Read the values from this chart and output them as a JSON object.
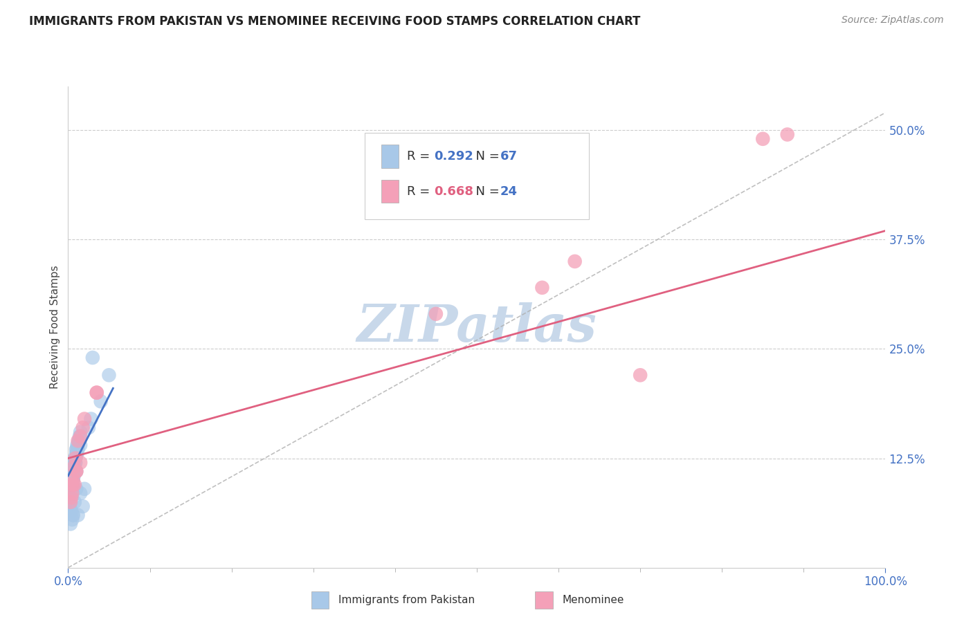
{
  "title": "IMMIGRANTS FROM PAKISTAN VS MENOMINEE RECEIVING FOOD STAMPS CORRELATION CHART",
  "source": "Source: ZipAtlas.com",
  "ylabel": "Receiving Food Stamps",
  "xlim": [
    0,
    100
  ],
  "ylim": [
    0,
    55
  ],
  "xtick_labels": [
    "0.0%",
    "100.0%"
  ],
  "xtick_positions": [
    0,
    100
  ],
  "ytick_labels": [
    "12.5%",
    "25.0%",
    "37.5%",
    "50.0%"
  ],
  "ytick_positions": [
    12.5,
    25.0,
    37.5,
    50.0
  ],
  "legend_label1": "Immigrants from Pakistan",
  "legend_label2": "Menominee",
  "R1": "0.292",
  "N1": "67",
  "R2": "0.668",
  "N2": "24",
  "color_blue": "#a8c8e8",
  "color_pink": "#f4a0b8",
  "color_blue_line": "#4472c4",
  "color_pink_line": "#e06080",
  "color_gray_dash": "#b0b0b0",
  "watermark_color": "#c8d8ea",
  "blue_points_x": [
    0.3,
    0.5,
    0.8,
    0.4,
    0.6,
    0.2,
    0.7,
    0.9,
    1.0,
    1.2,
    1.5,
    0.3,
    0.4,
    0.5,
    0.6,
    0.8,
    1.0,
    1.1,
    1.3,
    1.5,
    0.2,
    0.3,
    0.4,
    0.5,
    0.6,
    0.7,
    0.8,
    0.9,
    1.0,
    1.2,
    0.3,
    0.4,
    0.5,
    0.6,
    0.7,
    0.8,
    0.9,
    1.0,
    1.1,
    1.4,
    0.3,
    0.4,
    0.5,
    0.6,
    0.7,
    0.8,
    0.9,
    1.0,
    1.3,
    1.5,
    0.2,
    0.3,
    0.5,
    0.6,
    0.8,
    1.0,
    1.8,
    2.0,
    2.5,
    2.8,
    0.4,
    0.6,
    1.2,
    1.5,
    3.0,
    4.0,
    5.0
  ],
  "blue_points_y": [
    7.5,
    9.5,
    11.0,
    8.0,
    10.0,
    7.0,
    10.5,
    12.0,
    13.0,
    13.5,
    14.0,
    8.5,
    9.0,
    10.0,
    10.5,
    11.5,
    11.0,
    13.0,
    14.5,
    15.0,
    7.5,
    9.5,
    10.0,
    10.5,
    11.0,
    11.5,
    12.5,
    12.5,
    13.5,
    14.0,
    8.0,
    9.5,
    8.5,
    10.0,
    12.0,
    11.0,
    12.5,
    13.5,
    14.0,
    15.0,
    8.0,
    9.5,
    9.0,
    11.0,
    11.5,
    11.0,
    12.0,
    13.0,
    14.5,
    15.5,
    6.5,
    5.0,
    5.5,
    6.0,
    7.5,
    9.0,
    7.0,
    9.0,
    16.0,
    17.0,
    6.5,
    6.0,
    6.0,
    8.5,
    24.0,
    19.0,
    22.0
  ],
  "pink_points_x": [
    0.3,
    0.4,
    0.5,
    0.6,
    0.7,
    0.8,
    0.9,
    1.0,
    1.2,
    1.5,
    1.8,
    2.0,
    3.5,
    0.6,
    0.5,
    1.0,
    1.5,
    3.5,
    45.0,
    58.0,
    62.0,
    70.0,
    85.0,
    88.0
  ],
  "pink_points_y": [
    7.5,
    8.0,
    8.5,
    9.5,
    11.5,
    9.5,
    12.5,
    11.0,
    14.5,
    12.0,
    16.0,
    17.0,
    20.0,
    10.0,
    9.5,
    11.0,
    15.0,
    20.0,
    29.0,
    32.0,
    35.0,
    22.0,
    49.0,
    49.5
  ],
  "blue_trend_x0": 0.0,
  "blue_trend_x1": 5.5,
  "blue_trend_y0": 10.5,
  "blue_trend_y1": 20.5,
  "pink_trend_x0": 0.0,
  "pink_trend_x1": 100.0,
  "pink_trend_y0": 12.5,
  "pink_trend_y1": 38.5,
  "ref_line_x0": 0,
  "ref_line_x1": 100,
  "ref_line_y0": 0,
  "ref_line_y1": 52
}
